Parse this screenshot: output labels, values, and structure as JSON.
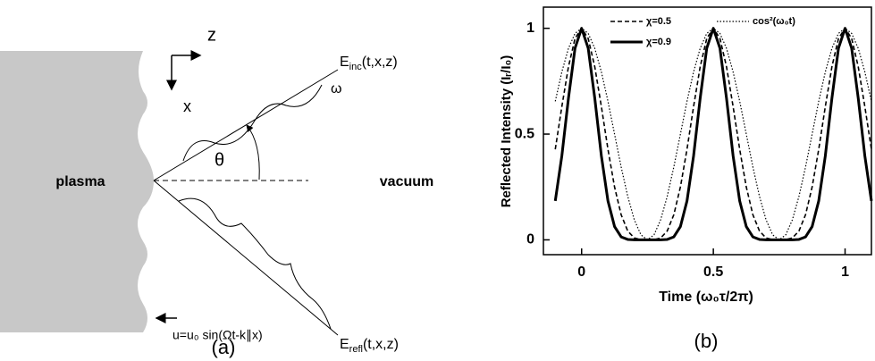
{
  "diagram": {
    "axis_z": "z",
    "axis_x": "x",
    "incident": {
      "symbol": "E",
      "subscript": "inc",
      "args": "(t,x,z)"
    },
    "frequency": "ω",
    "angle": "θ",
    "medium_left": "plasma",
    "medium_right": "vacuum",
    "reflected": {
      "symbol": "E",
      "subscript": "refl",
      "args": "(t,x,z)"
    },
    "surface_motion": "u=u₀ sin(Ωt-k∥x)",
    "panel_label": "(a)"
  },
  "chart_data": {
    "type": "line",
    "y_label": "Reflected Intensity (Iᵣ/I₀)",
    "x_label": "Time (ω₀τ/2π)",
    "panel_label": "(b)",
    "x": [
      -0.1,
      -0.075,
      -0.05,
      -0.025,
      0,
      0.025,
      0.05,
      0.075,
      0.1,
      0.125,
      0.15,
      0.175,
      0.2,
      0.225,
      0.25,
      0.275,
      0.3,
      0.325,
      0.35,
      0.375,
      0.4,
      0.425,
      0.45,
      0.475,
      0.5,
      0.525,
      0.55,
      0.575,
      0.6,
      0.625,
      0.65,
      0.675,
      0.7,
      0.725,
      0.75,
      0.775,
      0.8,
      0.825,
      0.85,
      0.875,
      0.9,
      0.925,
      0.95,
      0.975,
      1,
      1.025,
      1.05,
      1.075,
      1.1
    ],
    "series": [
      {
        "name": "χ=0.5",
        "color": "#000000",
        "style": "dashed",
        "values": [
          0.428,
          0.63,
          0.818,
          0.952,
          1,
          0.952,
          0.818,
          0.63,
          0.428,
          0.25,
          0.119,
          0.042,
          0.009,
          0.001,
          0,
          0.001,
          0.009,
          0.042,
          0.119,
          0.25,
          0.428,
          0.63,
          0.818,
          0.952,
          1,
          0.952,
          0.818,
          0.63,
          0.428,
          0.25,
          0.119,
          0.042,
          0.009,
          0.001,
          0,
          0.001,
          0.009,
          0.042,
          0.119,
          0.25,
          0.428,
          0.63,
          0.818,
          0.952,
          1,
          0.952,
          0.818,
          0.63,
          0.428
        ]
      },
      {
        "name": "χ=0.9",
        "color": "#000000",
        "style": "solid",
        "values": [
          0.184,
          0.397,
          0.669,
          0.906,
          1,
          0.906,
          0.669,
          0.397,
          0.184,
          0.063,
          0.014,
          0.002,
          0,
          0,
          0,
          0,
          0,
          0.002,
          0.014,
          0.063,
          0.184,
          0.397,
          0.669,
          0.906,
          1,
          0.906,
          0.669,
          0.397,
          0.184,
          0.063,
          0.014,
          0.002,
          0,
          0,
          0,
          0,
          0,
          0.002,
          0.014,
          0.063,
          0.184,
          0.397,
          0.669,
          0.906,
          1,
          0.906,
          0.669,
          0.397,
          0.184
        ]
      },
      {
        "name": "cos²(ω₀t)",
        "color": "#000000",
        "style": "dotted",
        "values": [
          0.655,
          0.794,
          0.905,
          0.976,
          1,
          0.976,
          0.905,
          0.794,
          0.655,
          0.5,
          0.345,
          0.206,
          0.095,
          0.024,
          0,
          0.024,
          0.095,
          0.206,
          0.345,
          0.5,
          0.655,
          0.794,
          0.905,
          0.976,
          1,
          0.976,
          0.905,
          0.794,
          0.655,
          0.5,
          0.345,
          0.206,
          0.095,
          0.024,
          0,
          0.024,
          0.095,
          0.206,
          0.345,
          0.5,
          0.655,
          0.794,
          0.905,
          0.976,
          1,
          0.976,
          0.905,
          0.794,
          0.655
        ]
      }
    ],
    "xlim": [
      -0.145,
      1.1
    ],
    "ylim": [
      -0.07,
      1.1
    ],
    "xticks": [
      0,
      0.5,
      1
    ],
    "yticks": [
      0,
      0.5,
      1
    ]
  }
}
